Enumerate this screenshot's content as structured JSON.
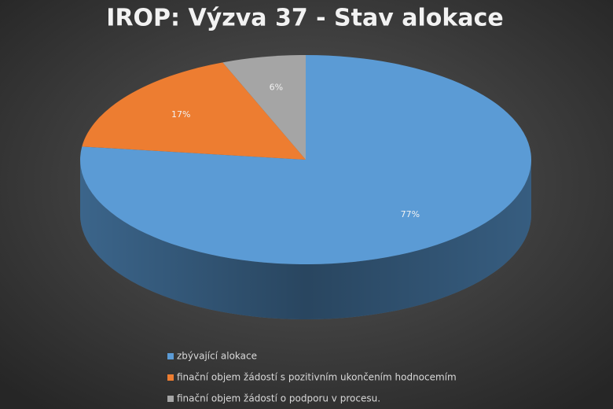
{
  "chart_data": {
    "type": "pie",
    "title": "IROP: Výzva 37 - Stav alokace",
    "categories": [
      "zbývající alokace",
      "finační objem žádostí s pozitivním ukončením hodnocemím",
      "finační objem žádostí o podporu v procesu."
    ],
    "values": [
      77,
      17,
      6
    ],
    "value_labels": [
      "77%",
      "17%",
      "6%"
    ],
    "colors": [
      "#5b9bd5",
      "#ed7d31",
      "#a5a5a5"
    ]
  }
}
